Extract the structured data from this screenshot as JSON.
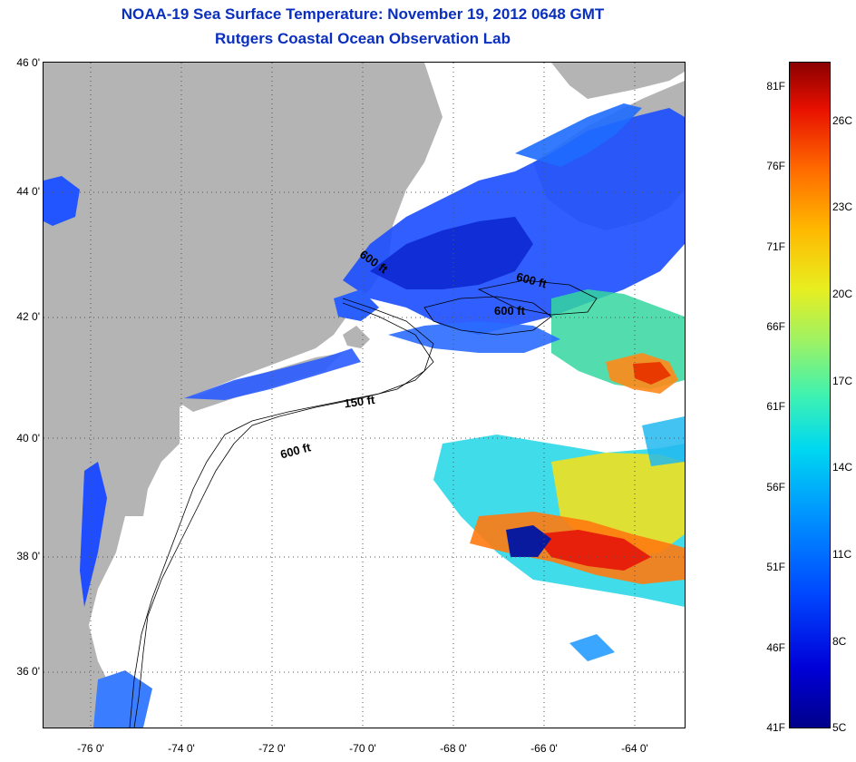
{
  "title_line1": "NOAA-19 Sea Surface Temperature:  November 19, 2012 0648 GMT",
  "title_line2": "Rutgers Coastal Ocean Observation Lab",
  "latitude_labels": [
    "46 0'",
    "44 0'",
    "42 0'",
    "40 0'",
    "38 0'",
    "36 0'"
  ],
  "longitude_labels": [
    "-76 0'",
    "-74 0'",
    "-72 0'",
    "-70 0'",
    "-68 0'",
    "-66 0'",
    "-64 0'"
  ],
  "depth_contour_labels": [
    "600 ft",
    "600 ft",
    "600 ft",
    "150 ft",
    "600 ft"
  ],
  "colorbar": {
    "fahrenheit_labels": [
      "81F",
      "76F",
      "71F",
      "66F",
      "61F",
      "56F",
      "51F",
      "46F",
      "41F"
    ],
    "celsius_labels": [
      "26C",
      "23C",
      "20C",
      "17C",
      "14C",
      "11C",
      "8C",
      "5C"
    ],
    "colors": [
      "#00008a",
      "#0000d8",
      "#0047ff",
      "#0094ff",
      "#00d8f0",
      "#3ff2b0",
      "#9cf265",
      "#e8ee20",
      "#ffb800",
      "#ff6a00",
      "#e81000",
      "#8a0000"
    ]
  },
  "map_colors": {
    "land": "#b4b4b4",
    "cloud": "#ffffff",
    "graticule": "#555555"
  }
}
